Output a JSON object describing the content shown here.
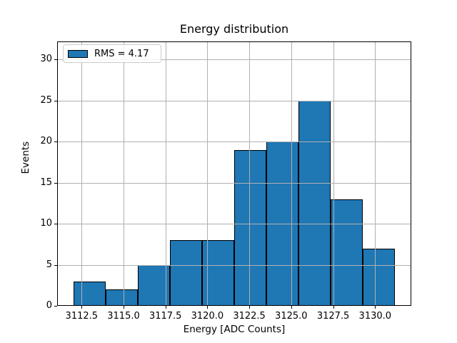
{
  "figure": {
    "title": "Energy distribution"
  },
  "chart_data": {
    "type": "bar",
    "subtype": "histogram",
    "title": "Energy distribution",
    "xlabel": "Energy [ADC Counts]",
    "ylabel": "Events",
    "legend": {
      "label": "RMS = 4.17",
      "loc": "upper left"
    },
    "bin_edges": [
      3112.0,
      3113.92,
      3115.84,
      3117.76,
      3119.68,
      3121.6,
      3123.52,
      3125.44,
      3127.36,
      3129.28,
      3131.2
    ],
    "counts": [
      3,
      2,
      5,
      8,
      8,
      19,
      20,
      25,
      13,
      7
    ],
    "xticks": [
      {
        "value": 3112.5,
        "label": "3112.5"
      },
      {
        "value": 3115.0,
        "label": "3115.0"
      },
      {
        "value": 3117.5,
        "label": "3117.5"
      },
      {
        "value": 3120.0,
        "label": "3120.0"
      },
      {
        "value": 3122.5,
        "label": "3122.5"
      },
      {
        "value": 3125.0,
        "label": "3125.0"
      },
      {
        "value": 3127.5,
        "label": "3127.5"
      },
      {
        "value": 3130.0,
        "label": "3130.0"
      }
    ],
    "yticks": [
      {
        "value": 0,
        "label": "0"
      },
      {
        "value": 5,
        "label": "5"
      },
      {
        "value": 10,
        "label": "10"
      },
      {
        "value": 15,
        "label": "15"
      },
      {
        "value": 20,
        "label": "20"
      },
      {
        "value": 25,
        "label": "25"
      },
      {
        "value": 30,
        "label": "30"
      }
    ],
    "xlim": [
      3111.04,
      3132.16
    ],
    "ylim": [
      0,
      32.17
    ],
    "grid": true,
    "grid_over_bars": true,
    "colors": {
      "bar_fill": "#1f77b4",
      "bar_edge": "#000000",
      "grid": "#b0b0b0",
      "spine": "#000000",
      "legend_edge": "#cccccc",
      "background": "#ffffff"
    }
  }
}
